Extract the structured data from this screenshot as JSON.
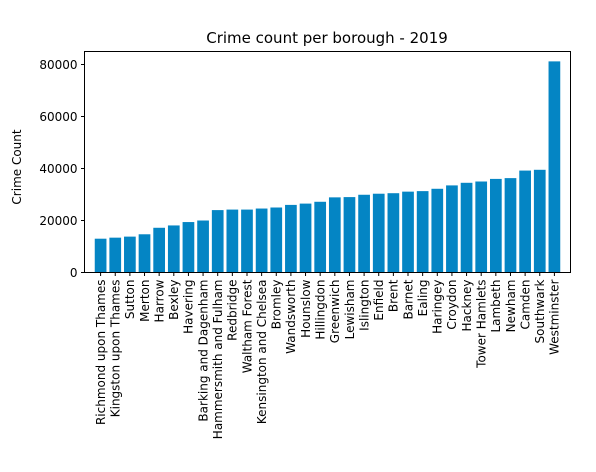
{
  "chart_data": {
    "type": "bar",
    "title": "Crime count per borough - 2019",
    "xlabel": "",
    "ylabel": "Crime Count",
    "ylim": [
      0,
      85000
    ],
    "yticks": [
      0,
      20000,
      40000,
      60000,
      80000
    ],
    "grid": false,
    "bar_color": "#0485c4",
    "categories": [
      "Richmond upon Thames",
      "Kingston upon Thames",
      "Sutton",
      "Merton",
      "Harrow",
      "Bexley",
      "Havering",
      "Barking and Dagenham",
      "Hammersmith and Fulham",
      "Redbridge",
      "Waltham Forest",
      "Kensington and Chelsea",
      "Bromley",
      "Wandsworth",
      "Hounslow",
      "Hillingdon",
      "Greenwich",
      "Lewisham",
      "Islington",
      "Enfield",
      "Brent",
      "Barnet",
      "Ealing",
      "Haringey",
      "Croydon",
      "Hackney",
      "Tower Hamlets",
      "Lambeth",
      "Newham",
      "Camden",
      "Southwark",
      "Westminster"
    ],
    "values": [
      13000,
      13400,
      13800,
      14700,
      17200,
      18100,
      19400,
      20000,
      24000,
      24200,
      24200,
      24600,
      25000,
      26000,
      26500,
      27200,
      28900,
      29000,
      29900,
      30300,
      30500,
      31100,
      31300,
      32200,
      33500,
      34500,
      35000,
      36000,
      36300,
      39200,
      39500,
      81200
    ]
  }
}
